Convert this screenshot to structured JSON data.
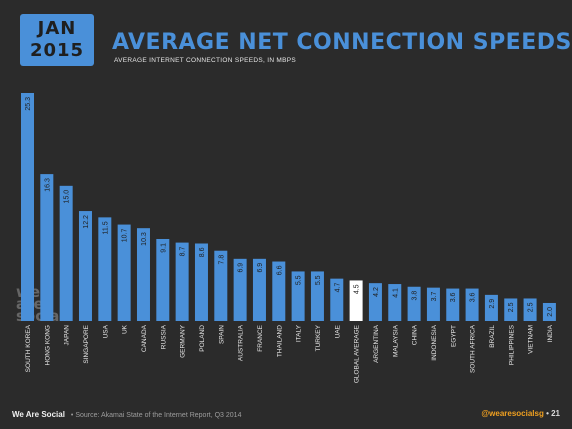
{
  "header": {
    "month": "JAN",
    "year": "2015",
    "title": "AVERAGE NET CONNECTION SPEEDS",
    "subtitle": "AVERAGE INTERNET CONNECTION SPEEDS, IN MBPS"
  },
  "watermark": [
    "we",
    "are",
    "social"
  ],
  "footer": {
    "brand": "We Are Social",
    "source": "• Source: Akamai State of the Internet Report, Q3 2014",
    "handle": "@wearesocialsg",
    "page": "• 21"
  },
  "colors": {
    "bar": "#4a90d9",
    "highlight_bar": "#ffffff",
    "background": "#2b2b2b",
    "label": "#e6e6e6"
  },
  "chart_data": {
    "type": "bar",
    "title": "AVERAGE NET CONNECTION SPEEDS",
    "subtitle": "AVERAGE INTERNET CONNECTION SPEEDS, IN MBPS",
    "categories": [
      "SOUTH KOREA",
      "HONG KONG",
      "JAPAN",
      "SINGAPORE",
      "USA",
      "UK",
      "CANADA",
      "RUSSIA",
      "GERMANY",
      "POLAND",
      "SPAIN",
      "AUSTRALIA",
      "FRANCE",
      "THAILAND",
      "ITALY",
      "TURKEY",
      "UAE",
      "GLOBAL AVERAGE",
      "ARGENTINA",
      "MALAYSIA",
      "CHINA",
      "INDONESIA",
      "EGYPT",
      "SOUTH AFRICA",
      "BRAZIL",
      "PHILIPPINES",
      "VIETNAM",
      "INDIA"
    ],
    "values": [
      25.3,
      16.3,
      15.0,
      12.2,
      11.5,
      10.7,
      10.3,
      9.1,
      8.7,
      8.6,
      7.8,
      6.9,
      6.9,
      6.6,
      5.5,
      5.5,
      4.7,
      4.5,
      4.2,
      4.1,
      3.8,
      3.7,
      3.6,
      3.6,
      2.9,
      2.5,
      2.5,
      2.0
    ],
    "value_labels": [
      "25.3",
      "16.3",
      "15.0",
      "12.2",
      "11.5",
      "10.7",
      "10.3",
      "9.1",
      "8.7",
      "8.6",
      "7.8",
      "6.9",
      "6.9",
      "6.6",
      "5.5",
      "5.5",
      "4.7",
      "4.5",
      "4.2",
      "4.1",
      "3.8",
      "3.7",
      "3.6",
      "3.6",
      "2.9",
      "2.5",
      "2.5",
      "2.0"
    ],
    "highlight": "GLOBAL AVERAGE",
    "ylim": [
      0,
      26
    ],
    "grid": false,
    "legend": "none"
  }
}
